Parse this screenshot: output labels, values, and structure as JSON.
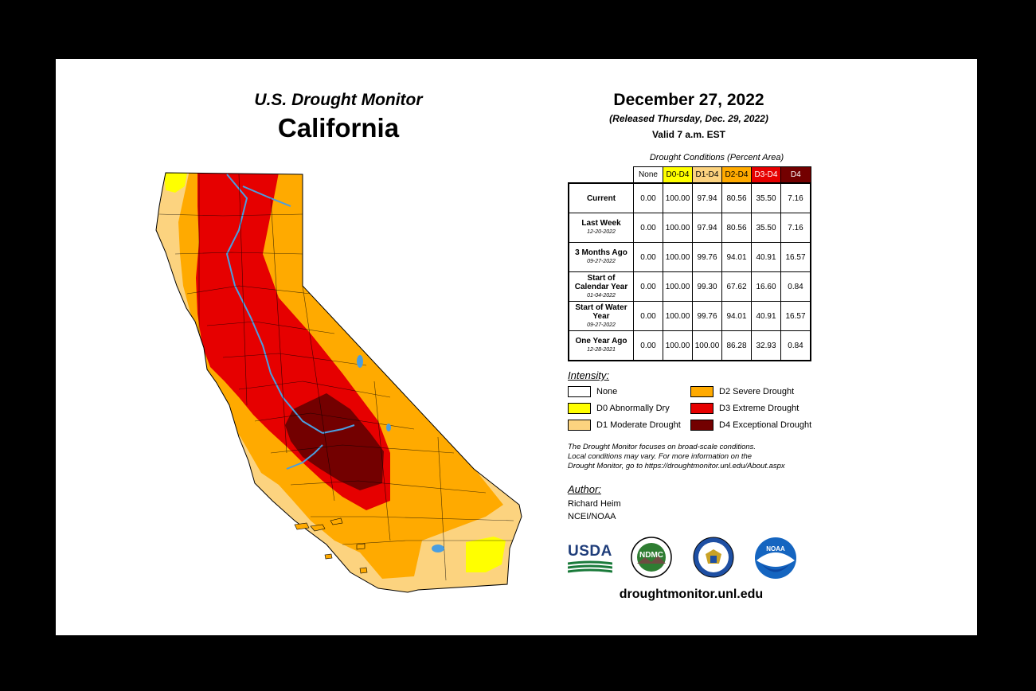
{
  "header": {
    "subtitle": "U.S. Drought Monitor",
    "state": "California",
    "date": "December 27, 2022",
    "released": "(Released Thursday, Dec. 29, 2022)",
    "valid": "Valid 7 a.m. EST"
  },
  "table": {
    "caption": "Drought Conditions (Percent Area)",
    "columns": [
      "None",
      "D0-D4",
      "D1-D4",
      "D2-D4",
      "D3-D4",
      "D4"
    ],
    "column_colors": [
      "#ffffff",
      "#ffff00",
      "#fcd37f",
      "#ffaa00",
      "#e60000",
      "#730000"
    ],
    "rows": [
      {
        "label": "Current",
        "sub": "",
        "values": [
          "0.00",
          "100.00",
          "97.94",
          "80.56",
          "35.50",
          "7.16"
        ]
      },
      {
        "label": "Last Week",
        "sub": "12-20-2022",
        "values": [
          "0.00",
          "100.00",
          "97.94",
          "80.56",
          "35.50",
          "7.16"
        ]
      },
      {
        "label": "3 Months Ago",
        "sub": "09-27-2022",
        "values": [
          "0.00",
          "100.00",
          "99.76",
          "94.01",
          "40.91",
          "16.57"
        ]
      },
      {
        "label": "Start of Calendar Year",
        "sub": "01-04-2022",
        "values": [
          "0.00",
          "100.00",
          "99.30",
          "67.62",
          "16.60",
          "0.84"
        ]
      },
      {
        "label": "Start of Water Year",
        "sub": "09-27-2022",
        "values": [
          "0.00",
          "100.00",
          "99.76",
          "94.01",
          "40.91",
          "16.57"
        ]
      },
      {
        "label": "One Year Ago",
        "sub": "12-28-2021",
        "values": [
          "0.00",
          "100.00",
          "100.00",
          "86.28",
          "32.93",
          "0.84"
        ]
      }
    ]
  },
  "legend": {
    "heading": "Intensity:",
    "items": [
      {
        "label": "None",
        "color": "#ffffff"
      },
      {
        "label": "D0 Abnormally Dry",
        "color": "#ffff00"
      },
      {
        "label": "D1 Moderate Drought",
        "color": "#fcd37f"
      },
      {
        "label": "D2 Severe Drought",
        "color": "#ffaa00"
      },
      {
        "label": "D3 Extreme Drought",
        "color": "#e60000"
      },
      {
        "label": "D4 Exceptional Drought",
        "color": "#730000"
      }
    ]
  },
  "note": {
    "line1": "The Drought Monitor focuses on broad-scale conditions.",
    "line2": "Local conditions may vary. For more information on the",
    "line3": "Drought Monitor, go to https://droughtmonitor.unl.edu/About.aspx"
  },
  "author": {
    "heading": "Author:",
    "name": "Richard Heim",
    "org": "NCEI/NOAA"
  },
  "logos": {
    "usda": "USDA",
    "ndmc": "NDMC",
    "noaa": "NOAA"
  },
  "url": "droughtmonitor.unl.edu",
  "colors": {
    "d0": "#ffff00",
    "d1": "#fcd37f",
    "d2": "#ffaa00",
    "d3": "#e60000",
    "d4": "#730000",
    "water": "#4a9ee0"
  }
}
